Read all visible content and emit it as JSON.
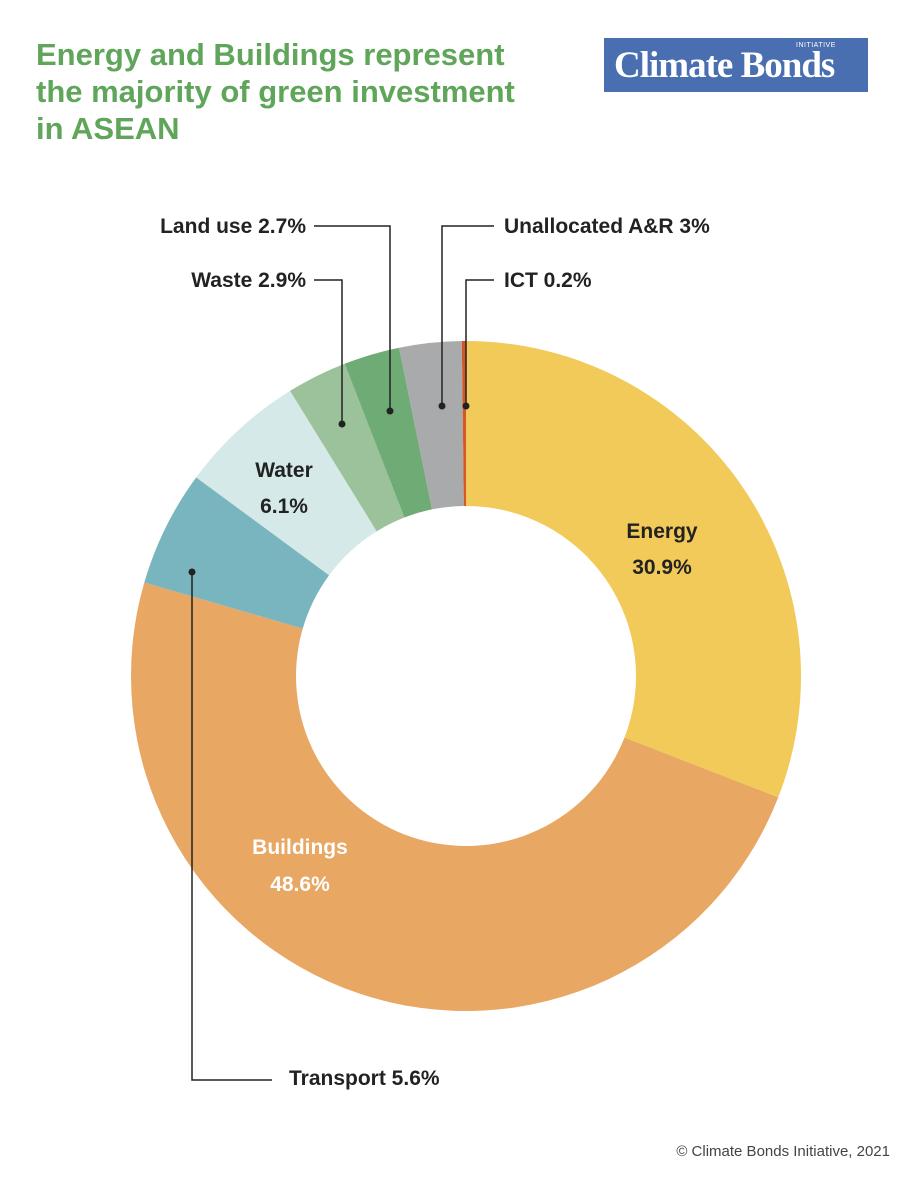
{
  "title_lines": [
    "Energy and Buildings represent",
    "the majority of green investment",
    "in ASEAN"
  ],
  "logo": {
    "text": "Climate Bonds",
    "sub": "INITIATIVE"
  },
  "copyright": "© Climate Bonds Initiative, 2021",
  "chart_data": {
    "type": "pie",
    "donut": true,
    "slices": [
      {
        "name": "Energy",
        "value": 30.9,
        "label": [
          "Energy",
          "30.9%"
        ],
        "color": "#f2ca59"
      },
      {
        "name": "Buildings",
        "value": 48.6,
        "label": [
          "Buildings",
          "48.6%"
        ],
        "color": "#e8a763"
      },
      {
        "name": "Transport",
        "value": 5.6,
        "label": [
          "Transport 5.6%"
        ],
        "color": "#79b5be"
      },
      {
        "name": "Water",
        "value": 6.1,
        "label": [
          "Water",
          "6.1%"
        ],
        "color": "#d5e9e8"
      },
      {
        "name": "Waste",
        "value": 2.9,
        "label": [
          "Waste 2.9%"
        ],
        "color": "#9cc29c"
      },
      {
        "name": "Land use",
        "value": 2.7,
        "label": [
          "Land use 2.7%"
        ],
        "color": "#6fab74"
      },
      {
        "name": "Unallocated A&R",
        "value": 3,
        "label": [
          "Unallocated A&R 3%"
        ],
        "color": "#a9aaac"
      },
      {
        "name": "ICT",
        "value": 0.2,
        "label": [
          "ICT 0.2%"
        ],
        "color": "#d4572a"
      }
    ]
  }
}
